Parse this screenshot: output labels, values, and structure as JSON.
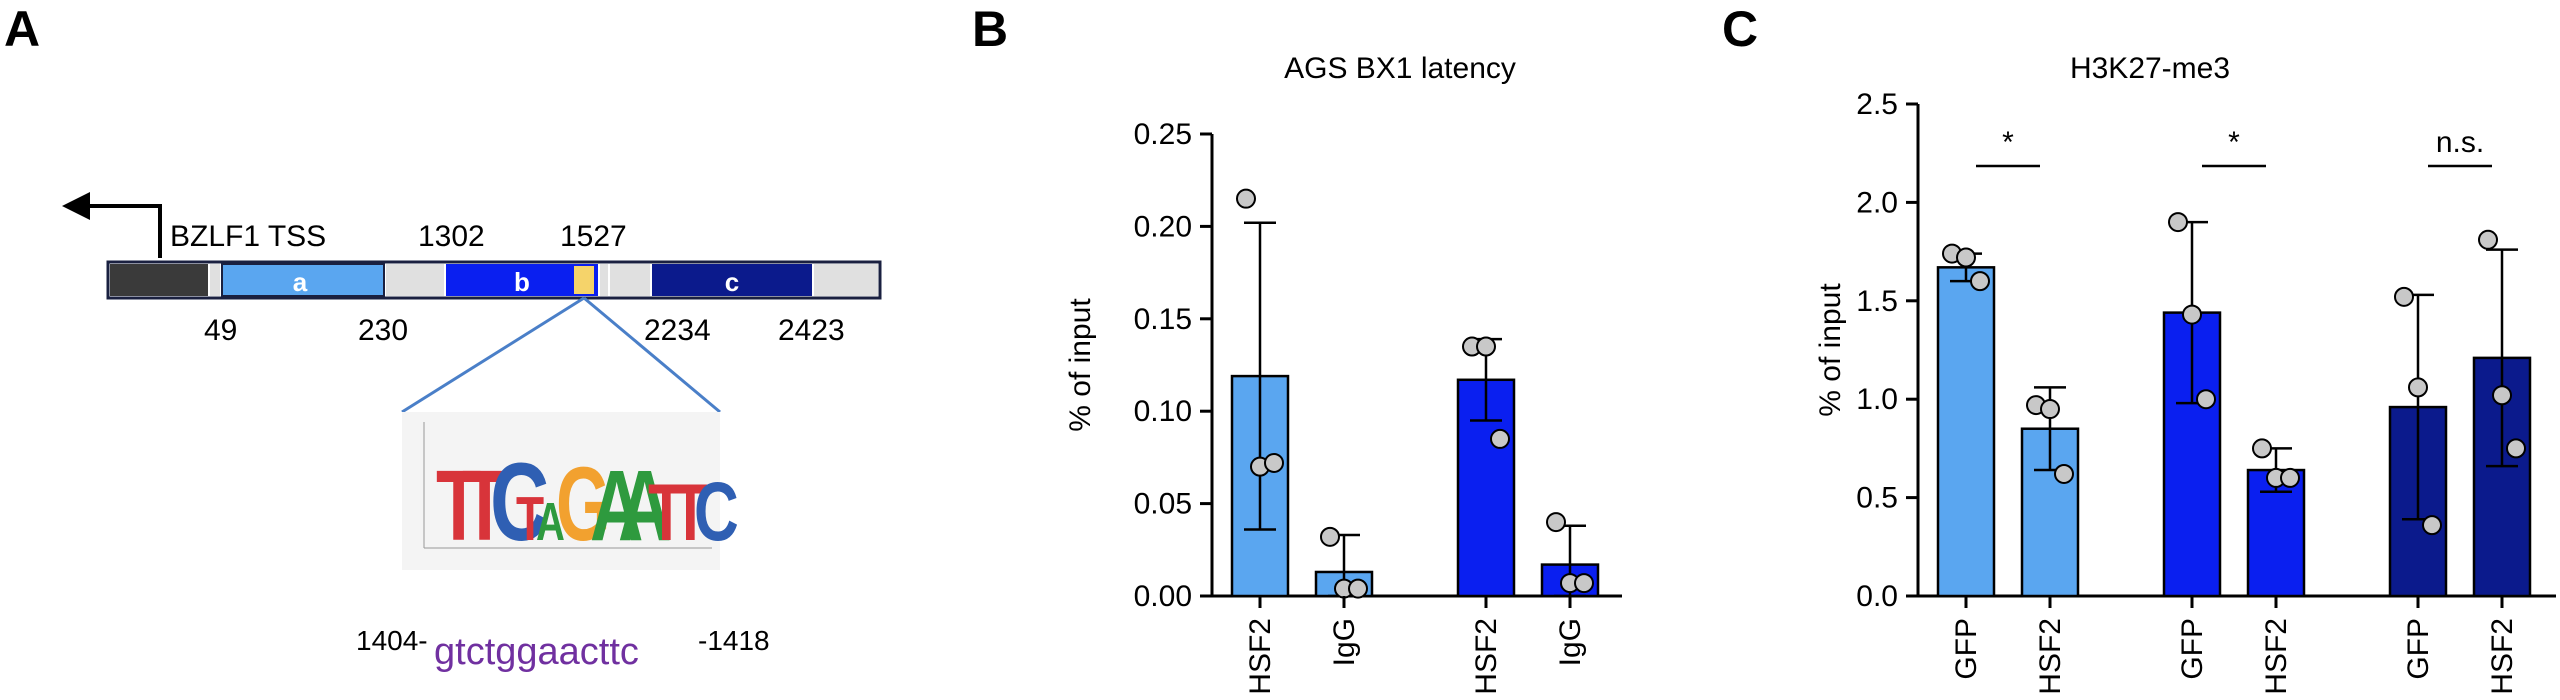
{
  "panelA": {
    "panel_label": "A",
    "tss_label": "BZLF1 TSS",
    "region_a": "a",
    "region_b": "b",
    "region_c": "c",
    "pos_1302": "1302",
    "pos_1527": "1527",
    "pos_49": "49",
    "pos_230": "230",
    "pos_2234": "2234",
    "pos_2423": "2423",
    "seq_left": "1404-",
    "sequence": "gtctggaacttc",
    "seq_right": "-1418",
    "logo_letters": [
      "T",
      "T",
      "C",
      "T",
      "A",
      "G",
      "A",
      "A",
      "T",
      "T",
      "C"
    ],
    "colors": {
      "light_blue": "#5aa6f0",
      "blue": "#0a1ff0",
      "navy": "#0b1a8c",
      "dark": "#3a3a3a",
      "motif": "#f5d36a",
      "seq_purple": "#7030a0"
    }
  },
  "chart_data": [
    {
      "panel_label": "B",
      "type": "bar",
      "title": "AGS BX1  latency",
      "ylabel": "% of input",
      "ylim": [
        0,
        0.25
      ],
      "yticks": [
        "0.00",
        "0.05",
        "0.10",
        "0.15",
        "0.20",
        "0.25"
      ],
      "categories": [
        "HSF2",
        "IgG",
        "HSF2",
        "IgG"
      ],
      "values": [
        0.119,
        0.013,
        0.117,
        0.017
      ],
      "errors": [
        0.083,
        0.02,
        0.022,
        0.021
      ],
      "bar_colors": [
        "#5aa6f0",
        "#5aa6f0",
        "#0a1ff0",
        "#0a1ff0"
      ],
      "points": [
        [
          0.215,
          0.07,
          0.072
        ],
        [
          0.032,
          0.004,
          0.004
        ],
        [
          0.135,
          0.135,
          0.085
        ],
        [
          0.04,
          0.007,
          0.007
        ]
      ],
      "annotations": []
    },
    {
      "panel_label": "C",
      "type": "bar",
      "title": "H3K27-me3",
      "ylabel": "% of input",
      "ylim": [
        0,
        2.5
      ],
      "yticks": [
        "0.0",
        "0.5",
        "1.0",
        "1.5",
        "2.0",
        "2.5"
      ],
      "categories": [
        "GFP",
        "HSF2",
        "GFP",
        "HSF2",
        "GFP",
        "HSF2"
      ],
      "values": [
        1.67,
        0.85,
        1.44,
        0.64,
        0.96,
        1.21
      ],
      "errors": [
        0.07,
        0.21,
        0.46,
        0.11,
        0.57,
        0.55
      ],
      "bar_colors": [
        "#5aa6f0",
        "#5aa6f0",
        "#0a1ff0",
        "#0a1ff0",
        "#0b1a8c",
        "#0b1a8c"
      ],
      "points": [
        [
          1.74,
          1.72,
          1.6
        ],
        [
          0.97,
          0.95,
          0.62
        ],
        [
          1.9,
          1.43,
          1.0
        ],
        [
          0.75,
          0.6,
          0.6
        ],
        [
          1.52,
          1.06,
          0.36
        ],
        [
          1.81,
          1.02,
          0.75
        ]
      ],
      "annotations": [
        {
          "pair": [
            0,
            1
          ],
          "text": "*"
        },
        {
          "pair": [
            2,
            3
          ],
          "text": "*"
        },
        {
          "pair": [
            4,
            5
          ],
          "text": "n.s."
        }
      ]
    }
  ]
}
